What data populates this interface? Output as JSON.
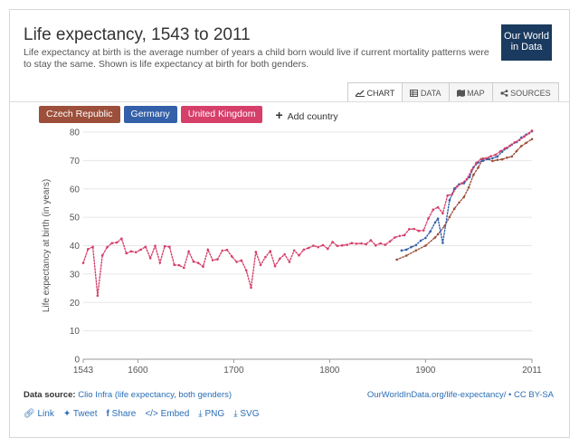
{
  "header": {
    "title": "Life expectancy, 1543 to 2011",
    "subtitle": "Life expectancy at birth is the average number of years a child born would live if current mortality patterns were to stay the same. Shown is life expectancy at birth for both genders.",
    "logo_line1": "Our World",
    "logo_line2": "in Data"
  },
  "tabs": [
    {
      "icon": "line-chart-icon",
      "label": "CHART"
    },
    {
      "icon": "table-icon",
      "label": "DATA"
    },
    {
      "icon": "map-icon",
      "label": "MAP"
    },
    {
      "icon": "share-icon",
      "label": "SOURCES"
    }
  ],
  "entities": [
    {
      "label": "Czech Republic",
      "color": "#9c4f3b"
    },
    {
      "label": "Germany",
      "color": "#3360a9"
    },
    {
      "label": "United Kingdom",
      "color": "#d63f6a"
    }
  ],
  "add_country_label": "Add country",
  "footer": {
    "source_label": "Data source:",
    "source_value": "Clio Infra (life expectancy, both genders)",
    "license": "OurWorldInData.org/life-expectancy/ • CC BY-SA",
    "links": [
      "Link",
      "Tweet",
      "Share",
      "Embed",
      "PNG",
      "SVG"
    ]
  },
  "chart_data": {
    "type": "line",
    "title": "Life expectancy, 1543 to 2011",
    "xlabel": "",
    "ylabel": "Life expectancy at birth (in years)",
    "xlim": [
      1543,
      2011
    ],
    "ylim": [
      0,
      80
    ],
    "yticks": [
      0,
      10,
      20,
      30,
      40,
      50,
      60,
      70,
      80
    ],
    "xticks": [
      1543,
      1600,
      1700,
      1800,
      1900,
      2011
    ],
    "grid": true,
    "series": [
      {
        "name": "United Kingdom",
        "color": "#d63f6a",
        "x": [
          1543,
          1548,
          1553,
          1558,
          1563,
          1568,
          1573,
          1578,
          1583,
          1588,
          1593,
          1598,
          1603,
          1608,
          1613,
          1618,
          1623,
          1628,
          1633,
          1638,
          1643,
          1648,
          1653,
          1658,
          1663,
          1668,
          1673,
          1678,
          1683,
          1688,
          1693,
          1698,
          1703,
          1708,
          1713,
          1718,
          1723,
          1728,
          1733,
          1738,
          1743,
          1748,
          1753,
          1758,
          1763,
          1768,
          1773,
          1778,
          1783,
          1788,
          1793,
          1798,
          1803,
          1808,
          1813,
          1818,
          1823,
          1828,
          1833,
          1838,
          1843,
          1848,
          1853,
          1858,
          1863,
          1868,
          1873,
          1878,
          1883,
          1888,
          1893,
          1898,
          1903,
          1908,
          1913,
          1918,
          1923,
          1928,
          1933,
          1938,
          1943,
          1948,
          1953,
          1958,
          1963,
          1968,
          1973,
          1978,
          1983,
          1988,
          1993,
          1998,
          2003,
          2008,
          2011
        ],
        "values": [
          33.9,
          38.8,
          39.6,
          22.4,
          36.6,
          39.5,
          40.9,
          41.1,
          42.5,
          37.3,
          38.0,
          37.7,
          38.6,
          39.6,
          35.6,
          39.9,
          34.0,
          39.8,
          39.6,
          33.2,
          33.1,
          32.2,
          38.0,
          34.4,
          33.9,
          32.6,
          38.6,
          34.9,
          35.2,
          38.2,
          38.5,
          36.2,
          34.3,
          34.8,
          31.3,
          25.2,
          37.8,
          33.2,
          36.0,
          38.1,
          32.8,
          35.4,
          36.9,
          34.3,
          38.3,
          36.6,
          38.6,
          39.2,
          40.0,
          39.5,
          40.2,
          38.9,
          41.3,
          39.9,
          40.1,
          40.3,
          40.9,
          40.7,
          40.8,
          40.5,
          41.9,
          40.1,
          40.8,
          40.3,
          41.5,
          42.9,
          43.4,
          43.7,
          45.8,
          45.9,
          45.2,
          45.4,
          49.6,
          52.7,
          53.5,
          51.4,
          57.7,
          58.2,
          60.8,
          62.0,
          63.4,
          66.5,
          69.2,
          70.5,
          70.8,
          71.5,
          72.0,
          73.2,
          74.3,
          75.2,
          76.4,
          77.2,
          78.4,
          79.6,
          80.5
        ]
      },
      {
        "name": "Germany",
        "color": "#3360a9",
        "x": [
          1875,
          1880,
          1885,
          1890,
          1895,
          1900,
          1905,
          1910,
          1913,
          1918,
          1925,
          1930,
          1935,
          1940,
          1946,
          1950,
          1955,
          1960,
          1965,
          1970,
          1975,
          1980,
          1985,
          1990,
          1995,
          2000,
          2005,
          2011
        ],
        "values": [
          38.3,
          38.6,
          39.5,
          40.2,
          41.8,
          42.7,
          45.0,
          48.2,
          49.5,
          41.0,
          56.0,
          60.1,
          61.6,
          62.0,
          64.2,
          67.6,
          69.3,
          69.9,
          70.5,
          70.8,
          71.4,
          73.1,
          74.4,
          75.6,
          76.5,
          78.1,
          79.1,
          80.3
        ]
      },
      {
        "name": "Czech Republic",
        "color": "#9c4f3b",
        "x": [
          1870,
          1880,
          1890,
          1900,
          1910,
          1913,
          1920,
          1925,
          1930,
          1935,
          1940,
          1945,
          1950,
          1955,
          1960,
          1965,
          1970,
          1975,
          1980,
          1985,
          1990,
          1995,
          2000,
          2005,
          2011
        ],
        "values": [
          35.1,
          36.5,
          38.3,
          40.0,
          42.9,
          44.0,
          47.0,
          50.1,
          53.0,
          55.2,
          57.1,
          60.5,
          65.0,
          67.5,
          70.7,
          70.6,
          69.8,
          70.2,
          70.4,
          71.0,
          71.4,
          73.3,
          75.1,
          76.2,
          77.5
        ]
      }
    ]
  }
}
